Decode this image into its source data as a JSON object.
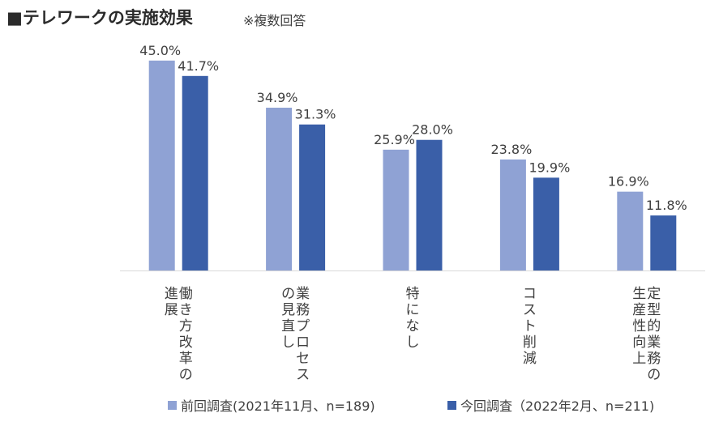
{
  "header": {
    "title": "■テレワークの実施効果",
    "subtitle": "※複数回答"
  },
  "chart_data": {
    "type": "bar",
    "categories": [
      [
        "働き方改革の",
        "進展"
      ],
      [
        "業務プロセス",
        "の見直し"
      ],
      [
        "特になし"
      ],
      [
        "コスト削減"
      ],
      [
        "定型的業務の",
        "生産性向上"
      ]
    ],
    "series": [
      {
        "name": "前回調査(2021年11月、n=189)",
        "color": "#8FA2D4",
        "values": [
          45.0,
          34.9,
          25.9,
          23.8,
          16.9
        ],
        "labels": [
          "45.0%",
          "34.9%",
          "25.9%",
          "23.8%",
          "16.9%"
        ]
      },
      {
        "name": "今回調査（2022年2月、n=211)",
        "color": "#3A5FA8",
        "values": [
          41.7,
          31.3,
          28.0,
          19.9,
          11.8
        ],
        "labels": [
          "41.7%",
          "31.3%",
          "28.0%",
          "19.9%",
          "11.8%"
        ]
      }
    ],
    "ylim": [
      0,
      50
    ],
    "grid": false,
    "legend": "bottom",
    "axis_line_color": "#d9d9d9"
  }
}
